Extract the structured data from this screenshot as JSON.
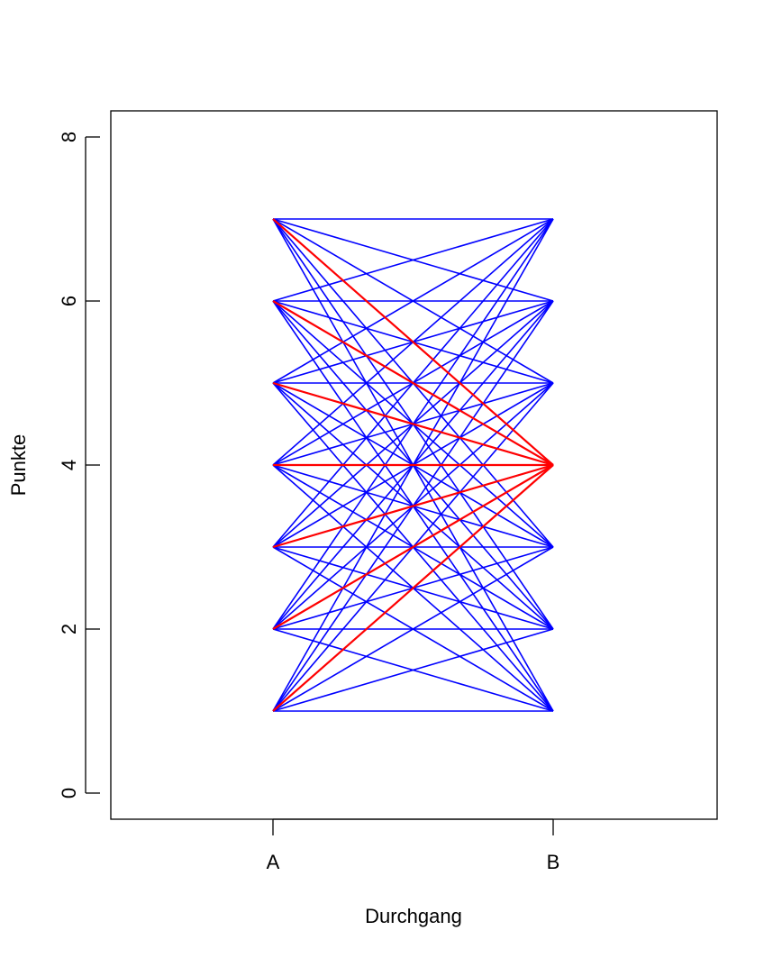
{
  "chart_data": {
    "type": "line",
    "title": "",
    "xlabel": "Durchgang",
    "ylabel": "Punkte",
    "categories": [
      "A",
      "B"
    ],
    "ylim": [
      0,
      8
    ],
    "yticks": [
      0,
      2,
      4,
      6,
      8
    ],
    "grid": false,
    "series": [
      {
        "color": "#0000ff",
        "segments_from": [
          1,
          2,
          3,
          4,
          5,
          6,
          7
        ],
        "segments_to": [
          1,
          2,
          3,
          4,
          5,
          6,
          7
        ],
        "description_pairs": "all A→B level pairs"
      },
      {
        "color": "#ff0000",
        "values_pairs": [
          [
            1,
            4
          ],
          [
            2,
            4
          ],
          [
            3,
            4
          ],
          [
            4,
            4
          ],
          [
            5,
            4
          ],
          [
            6,
            4
          ],
          [
            7,
            4
          ]
        ]
      }
    ]
  }
}
